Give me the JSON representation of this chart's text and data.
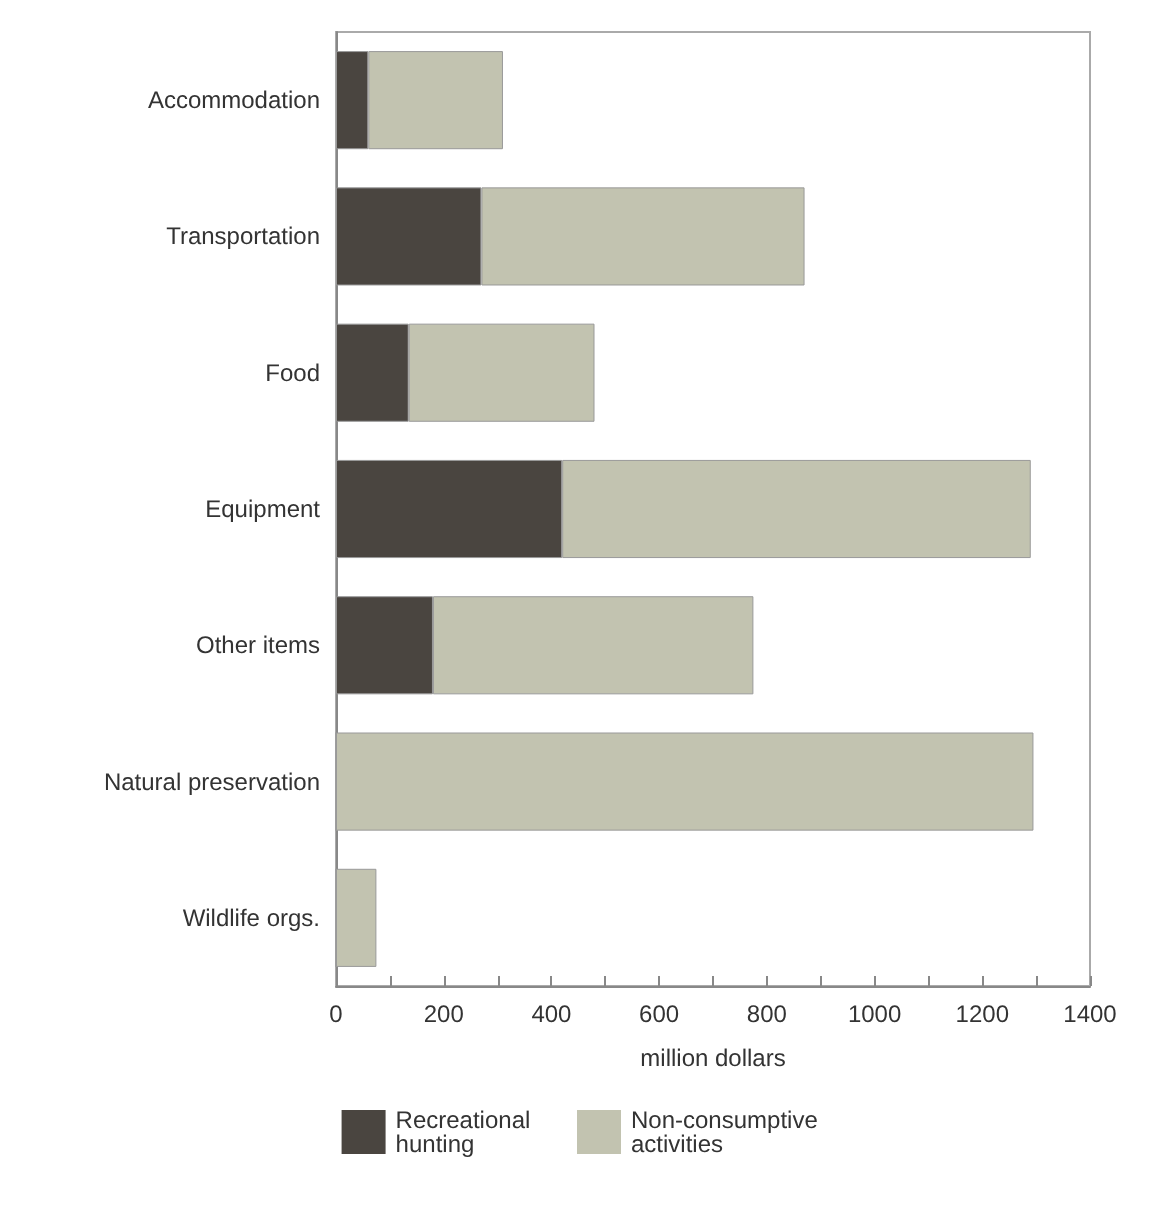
{
  "chart_data": {
    "type": "bar",
    "orientation": "horizontal",
    "stacked": true,
    "xlabel": "million dollars",
    "categories": [
      "Accommodation",
      "Transportation",
      "Food",
      "Equipment",
      "Other items",
      "Natural preservation",
      "Wildlife orgs."
    ],
    "series": [
      {
        "name": "Recreational hunting",
        "color": "#4a4540",
        "values": [
          60,
          270,
          135,
          420,
          180,
          0,
          0
        ]
      },
      {
        "name": "Non-consumptive activities",
        "color": "#c2c3b0",
        "values": [
          250,
          600,
          345,
          870,
          595,
          1295,
          75
        ]
      }
    ],
    "xlim": [
      0,
      1400
    ],
    "xticks": [
      0,
      {
        "value": 100,
        "label": null
      },
      200,
      {
        "value": 300,
        "label": null
      },
      400,
      {
        "value": 500,
        "label": null
      },
      600,
      {
        "value": 700,
        "label": null
      },
      800,
      {
        "value": 900,
        "label": null
      },
      1000,
      {
        "value": 1100,
        "label": null
      },
      1200,
      {
        "value": 1300,
        "label": null
      },
      1400
    ],
    "grid": false,
    "legend": "bottom"
  }
}
